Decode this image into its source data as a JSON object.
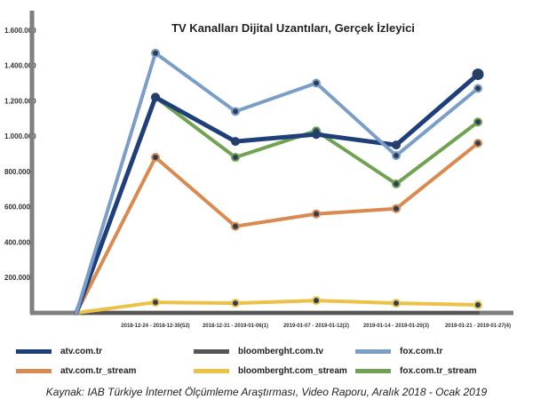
{
  "chart_data": {
    "type": "line",
    "title": "TV Kanalları Dijital Uzantıları, Gerçek İzleyici",
    "categories": [
      "",
      "2018-12-24 - 2018-12-30(52)",
      "2018-12-31 - 2019-01-06(1)",
      "2019-01-07 - 2019-01-12(2)",
      "2019-01-14 - 2019-01-20(3)",
      "2019-01-21 - 2019-01-27(4)"
    ],
    "yticks": [
      "200.000",
      "400.000",
      "600.000",
      "800.000",
      "1.000.000",
      "1.200.000",
      "1.400.000",
      "1.600.000"
    ],
    "ylim": [
      0,
      1700000
    ],
    "grid": false,
    "legend_position": "bottom",
    "series": [
      {
        "name": "atv.com.tr",
        "color": "#1f3f7a",
        "width": 5,
        "values": [
          0,
          1220000,
          970000,
          1010000,
          950000,
          1350000
        ]
      },
      {
        "name": "bloomberght.com.tv",
        "color": "#555555",
        "width": 4,
        "values": [
          0,
          0,
          0,
          0,
          0,
          0
        ]
      },
      {
        "name": "fox.com.tr",
        "color": "#7b9ec9",
        "width": 4,
        "values": [
          0,
          1470000,
          1140000,
          1300000,
          890000,
          1270000
        ]
      },
      {
        "name": "atv.com.tr_stream",
        "color": "#d88a50",
        "width": 4,
        "values": [
          0,
          880000,
          490000,
          560000,
          590000,
          960000
        ]
      },
      {
        "name": "bloomberght.com_stream",
        "color": "#ecc246",
        "width": 4,
        "values": [
          0,
          60000,
          55000,
          70000,
          55000,
          45000
        ]
      },
      {
        "name": "fox.com.tr_stream",
        "color": "#6fa352",
        "width": 4,
        "values": [
          0,
          1220000,
          880000,
          1030000,
          730000,
          1080000
        ]
      }
    ]
  },
  "source": "Kaynak: IAB Türkiye İnternet Ölçümleme Araştırması, Video Raporu, Aralık  2018 - Ocak 2019"
}
